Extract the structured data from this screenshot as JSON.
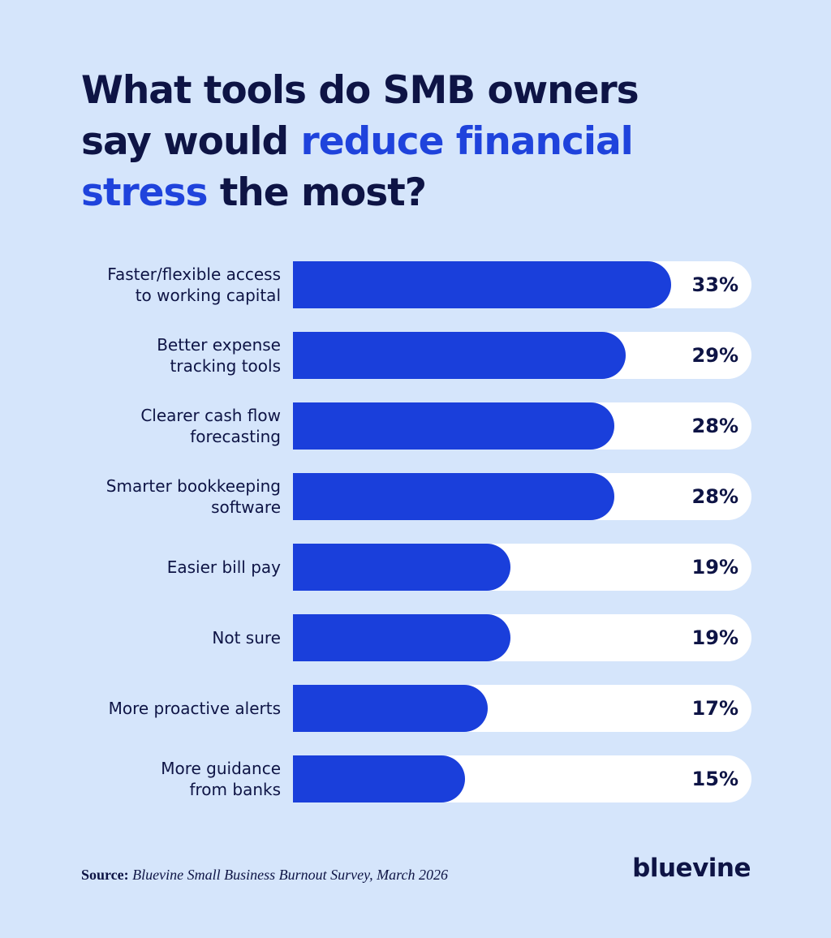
{
  "chart_data": {
    "type": "bar",
    "orientation": "horizontal",
    "title_segments": [
      {
        "text": "What tools do SMB owners",
        "highlight": false,
        "line_break": true
      },
      {
        "text": "say would",
        "highlight": false,
        "line_break": false
      },
      {
        "text": "reduce financial",
        "highlight": true,
        "line_break": true
      },
      {
        "text": "stress",
        "highlight": true,
        "line_break": false
      },
      {
        "text": "the most?",
        "highlight": false,
        "line_break": false
      }
    ],
    "categories": [
      "Faster/flexible access\nto working capital",
      "Better expense\ntracking tools",
      "Clearer cash flow\nforecasting",
      "Smarter bookkeeping\nsoftware",
      "Easier bill pay",
      "Not sure",
      "More proactive alerts",
      "More guidance\nfrom banks"
    ],
    "values": [
      33,
      29,
      28,
      28,
      19,
      19,
      17,
      15
    ],
    "value_labels": [
      "33%",
      "29%",
      "28%",
      "28%",
      "19%",
      "19%",
      "17%",
      "15%"
    ],
    "color": "#1a3fdb",
    "xlim": [
      0,
      40
    ],
    "source_label": "Source:",
    "source_text": "Bluevine Small Business Burnout Survey, March 2026",
    "logo": "bluevine"
  }
}
